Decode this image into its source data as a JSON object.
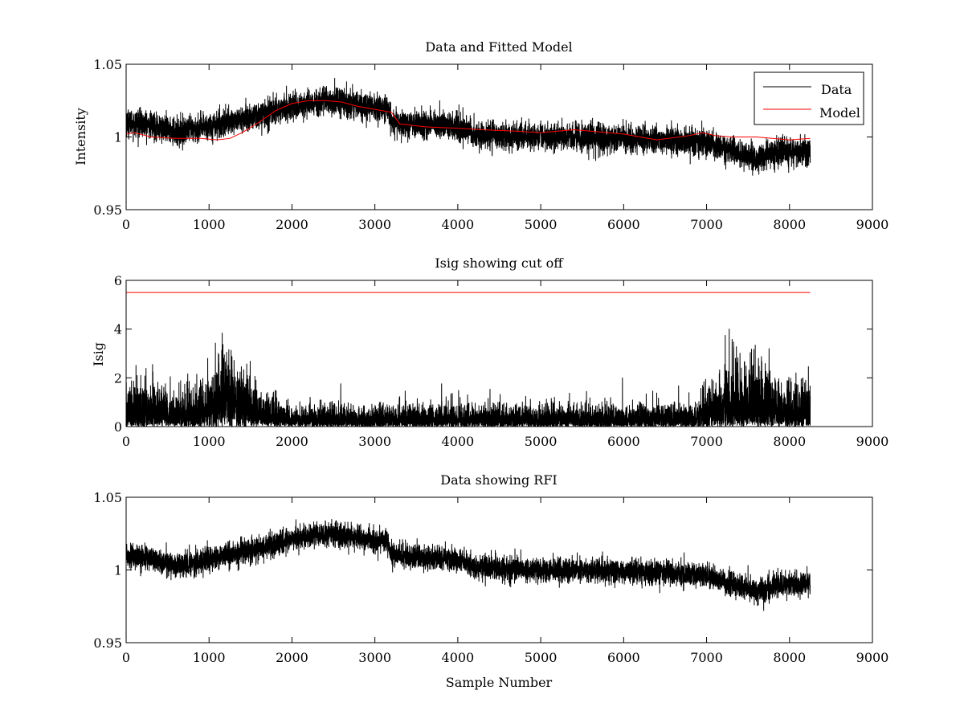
{
  "chart_data": [
    {
      "type": "line",
      "title": "Data and Fitted Model",
      "xlabel": "",
      "ylabel": "Intensity",
      "xlim": [
        0,
        9000
      ],
      "ylim": [
        0.95,
        1.05
      ],
      "xticks": [
        "0",
        "1000",
        "2000",
        "3000",
        "4000",
        "5000",
        "6000",
        "7000",
        "8000",
        "9000"
      ],
      "yticks": [
        "0.95",
        "1",
        "1.05"
      ],
      "legend": {
        "position": "top-right",
        "entries": [
          "Data",
          "Model"
        ]
      },
      "grid": false,
      "series": [
        {
          "name": "Data",
          "color": "#000000",
          "kind": "noisy",
          "noise": 0.0045,
          "n_points": 8260,
          "x": [
            0,
            300,
            600,
            900,
            1200,
            1500,
            1800,
            2100,
            2400,
            2700,
            3000,
            3150,
            3200,
            3500,
            4000,
            4200,
            4500,
            5000,
            5500,
            6000,
            6500,
            7000,
            7300,
            7600,
            7900,
            8250
          ],
          "y": [
            1.01,
            1.008,
            1.003,
            1.006,
            1.01,
            1.013,
            1.018,
            1.022,
            1.025,
            1.023,
            1.02,
            1.02,
            1.01,
            1.009,
            1.007,
            1.002,
            1.001,
            1.0,
            1.0,
            0.999,
            0.998,
            0.996,
            0.99,
            0.985,
            0.99,
            0.991
          ]
        },
        {
          "name": "Model",
          "color": "#ff0000",
          "kind": "smooth",
          "x": [
            0,
            100,
            300,
            600,
            900,
            1100,
            1250,
            1400,
            1600,
            1800,
            2000,
            2200,
            2400,
            2600,
            2800,
            3000,
            3200,
            3300,
            3600,
            4000,
            4300,
            4700,
            5000,
            5400,
            5600,
            6000,
            6400,
            6800,
            6950,
            7100,
            7300,
            7600,
            8000,
            8250
          ],
          "y": [
            1.002,
            1.003,
            1.0,
            0.999,
            0.999,
            0.998,
            0.999,
            1.003,
            1.01,
            1.018,
            1.023,
            1.025,
            1.025,
            1.024,
            1.021,
            1.019,
            1.017,
            1.009,
            1.007,
            1.006,
            1.005,
            1.004,
            1.003,
            1.005,
            1.004,
            1.002,
            0.998,
            1.001,
            1.003,
            1.001,
            1.0,
            1.0,
            0.998,
            0.999
          ]
        }
      ]
    },
    {
      "type": "line",
      "title": "Isig showing cut off",
      "xlabel": "",
      "ylabel": "Isig",
      "xlim": [
        0,
        9000
      ],
      "ylim": [
        0,
        6
      ],
      "xticks": [
        "0",
        "1000",
        "2000",
        "3000",
        "4000",
        "5000",
        "6000",
        "7000",
        "8000",
        "9000"
      ],
      "yticks": [
        "0",
        "2",
        "4",
        "6"
      ],
      "grid": false,
      "series": [
        {
          "color": "#000000",
          "kind": "abs-noise",
          "noise": 1.0,
          "n_points": 8260,
          "x": [
            0,
            400,
            800,
            1000,
            1200,
            1350,
            1600,
            2000,
            3000,
            4000,
            5000,
            6000,
            6900,
            7100,
            7300,
            7550,
            7800,
            8000,
            8250
          ],
          "y": [
            0.35,
            0.35,
            0.25,
            0.45,
            0.6,
            0.55,
            0.3,
            0.18,
            0.18,
            0.18,
            0.18,
            0.18,
            0.2,
            0.4,
            0.55,
            0.6,
            0.45,
            0.35,
            0.35
          ]
        },
        {
          "color": "#ff0000",
          "kind": "smooth",
          "x": [
            0,
            8250
          ],
          "y": [
            5.5,
            5.5
          ]
        }
      ]
    },
    {
      "type": "line",
      "title": "Data showing RFI",
      "xlabel": "Sample Number",
      "ylabel": "",
      "xlim": [
        0,
        9000
      ],
      "ylim": [
        0.95,
        1.05
      ],
      "xticks": [
        "0",
        "1000",
        "2000",
        "3000",
        "4000",
        "5000",
        "6000",
        "7000",
        "8000",
        "9000"
      ],
      "yticks": [
        "0.95",
        "1",
        "1.05"
      ],
      "grid": false,
      "series": [
        {
          "color": "#000000",
          "kind": "noisy",
          "noise": 0.004,
          "n_points": 8260,
          "x": [
            0,
            300,
            600,
            900,
            1200,
            1500,
            1800,
            2100,
            2400,
            2700,
            3000,
            3150,
            3200,
            3500,
            4000,
            4200,
            4500,
            5000,
            5500,
            6000,
            6500,
            7000,
            7300,
            7600,
            7900,
            8250
          ],
          "y": [
            1.01,
            1.008,
            1.003,
            1.006,
            1.01,
            1.013,
            1.018,
            1.022,
            1.025,
            1.023,
            1.02,
            1.02,
            1.01,
            1.009,
            1.007,
            1.002,
            1.001,
            1.0,
            1.0,
            0.999,
            0.998,
            0.996,
            0.99,
            0.985,
            0.99,
            0.991
          ]
        }
      ]
    }
  ]
}
